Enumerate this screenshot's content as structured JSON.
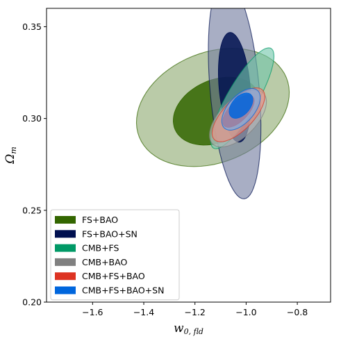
{
  "chart_data": {
    "type": "contour",
    "xlabel_main": "w",
    "xlabel_sub": "0, fld",
    "ylabel_main": "Ω",
    "ylabel_sub": "m",
    "xlim": [
      -1.78,
      -0.67
    ],
    "ylim": [
      0.2,
      0.36
    ],
    "xticks": [
      -1.6,
      -1.4,
      -1.2,
      -1.0,
      -0.8
    ],
    "xtick_labels": [
      "−1.6",
      "−1.4",
      "−1.2",
      "−1.0",
      "−0.8"
    ],
    "yticks": [
      0.2,
      0.25,
      0.3,
      0.35
    ],
    "ytick_labels": [
      "0.20",
      "0.25",
      "0.30",
      "0.35"
    ],
    "legend_position": "lower-left",
    "series": [
      {
        "name": "FS+BAO",
        "color": "#336600",
        "outer": {
          "cx": -1.13,
          "cy": 0.306,
          "rx": 0.31,
          "ry": 0.03,
          "angle": 22
        },
        "inner": {
          "cx": -1.115,
          "cy": 0.304,
          "rx": 0.178,
          "ry": 0.017,
          "angle": 24
        }
      },
      {
        "name": "FS+BAO+SN",
        "color": "#001050",
        "outer": {
          "cx": -1.045,
          "cy": 0.316,
          "rx": 0.096,
          "ry": 0.06,
          "angle": 5
        },
        "inner": {
          "cx": -1.045,
          "cy": 0.317,
          "rx": 0.061,
          "ry": 0.03,
          "angle": 5
        }
      },
      {
        "name": "CMB+FS",
        "color": "#009966",
        "outer": {
          "cx": -1.015,
          "cy": 0.311,
          "rx": 0.225,
          "ry": 0.0083,
          "angle": 60
        },
        "inner": null
      },
      {
        "name": "CMB+BAO",
        "color": "#808080",
        "outer": {
          "cx": -1.032,
          "cy": 0.3,
          "rx": 0.14,
          "ry": 0.01,
          "angle": 45
        },
        "inner": null
      },
      {
        "name": "CMB+FS+BAO",
        "color": "#dd3322",
        "outer": {
          "cx": -1.03,
          "cy": 0.302,
          "rx": 0.135,
          "ry": 0.0082,
          "angle": 46
        },
        "inner": {
          "cx": -1.03,
          "cy": 0.304,
          "rx": 0.08,
          "ry": 0.0052,
          "angle": 46
        }
      },
      {
        "name": "CMB+FS+BAO+SN",
        "color": "#0066dd",
        "outer": {
          "cx": -1.02,
          "cy": 0.305,
          "rx": 0.098,
          "ry": 0.0072,
          "angle": 49
        },
        "inner": {
          "cx": -1.02,
          "cy": 0.307,
          "rx": 0.058,
          "ry": 0.0049,
          "angle": 49
        }
      }
    ]
  }
}
